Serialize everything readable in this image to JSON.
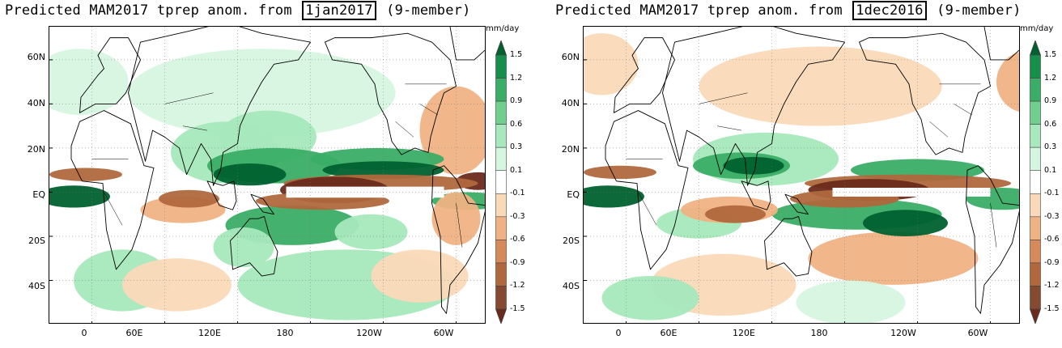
{
  "panels": [
    {
      "title_prefix": "Predicted MAM2017 tprep anom. from",
      "init_date": "1jan2017",
      "title_suffix": "(9-member)"
    },
    {
      "title_prefix": "Predicted MAM2017 tprep anom. from",
      "init_date": "1dec2016",
      "title_suffix": "(9-member)"
    }
  ],
  "map": {
    "lat_labels": [
      "60N",
      "40N",
      "20N",
      "EQ",
      "20S",
      "40S"
    ],
    "lon_labels": [
      "0",
      "60E",
      "120E",
      "180",
      "120W",
      "60W"
    ],
    "lat_range": [
      -60,
      75
    ],
    "lon_range": [
      -35,
      325
    ]
  },
  "colorbar": {
    "unit": "mm/day",
    "labels": [
      "1.5",
      "1.2",
      "0.9",
      "0.6",
      "0.3",
      "0.1",
      "-0.1",
      "-0.3",
      "-0.6",
      "-0.9",
      "-1.2",
      "-1.5"
    ],
    "colors": [
      "#00612f",
      "#168e4c",
      "#3aae66",
      "#6fcf8d",
      "#a7e8bc",
      "#d6f6df",
      "#ffffff",
      "#fad9b8",
      "#f0b283",
      "#d7895a",
      "#b0683c",
      "#864a30",
      "#6a2a1c"
    ]
  }
}
